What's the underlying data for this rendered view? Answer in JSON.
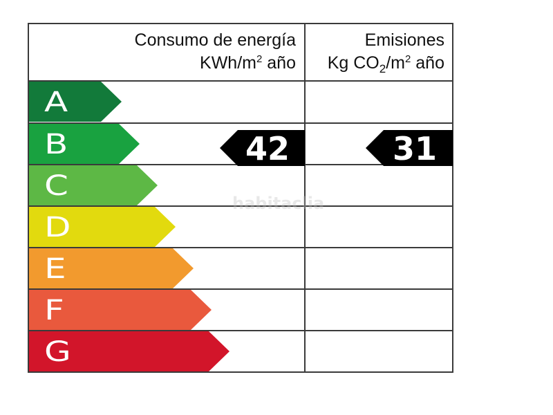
{
  "header": {
    "consumo_title": "Consumo de energía",
    "consumo_unit_prefix": "KWh/m",
    "consumo_unit_exp": "2",
    "consumo_unit_suffix": " año",
    "emisiones_title": "Emisiones",
    "emisiones_unit_prefix": "Kg CO",
    "emisiones_unit_sub": "2",
    "emisiones_unit_mid": "/m",
    "emisiones_unit_exp": "2",
    "emisiones_unit_suffix": " año"
  },
  "ratings": [
    {
      "letter": "A",
      "color": "#127a3a"
    },
    {
      "letter": "B",
      "color": "#19a240"
    },
    {
      "letter": "C",
      "color": "#5db845"
    },
    {
      "letter": "D",
      "color": "#e2da0e"
    },
    {
      "letter": "E",
      "color": "#f29a2e"
    },
    {
      "letter": "F",
      "color": "#e9593d"
    },
    {
      "letter": "G",
      "color": "#d2152a"
    }
  ],
  "consumo": {
    "value": "42",
    "rating": "B"
  },
  "emisiones": {
    "value": "31",
    "rating": "B"
  },
  "watermark": "habitaclia"
}
